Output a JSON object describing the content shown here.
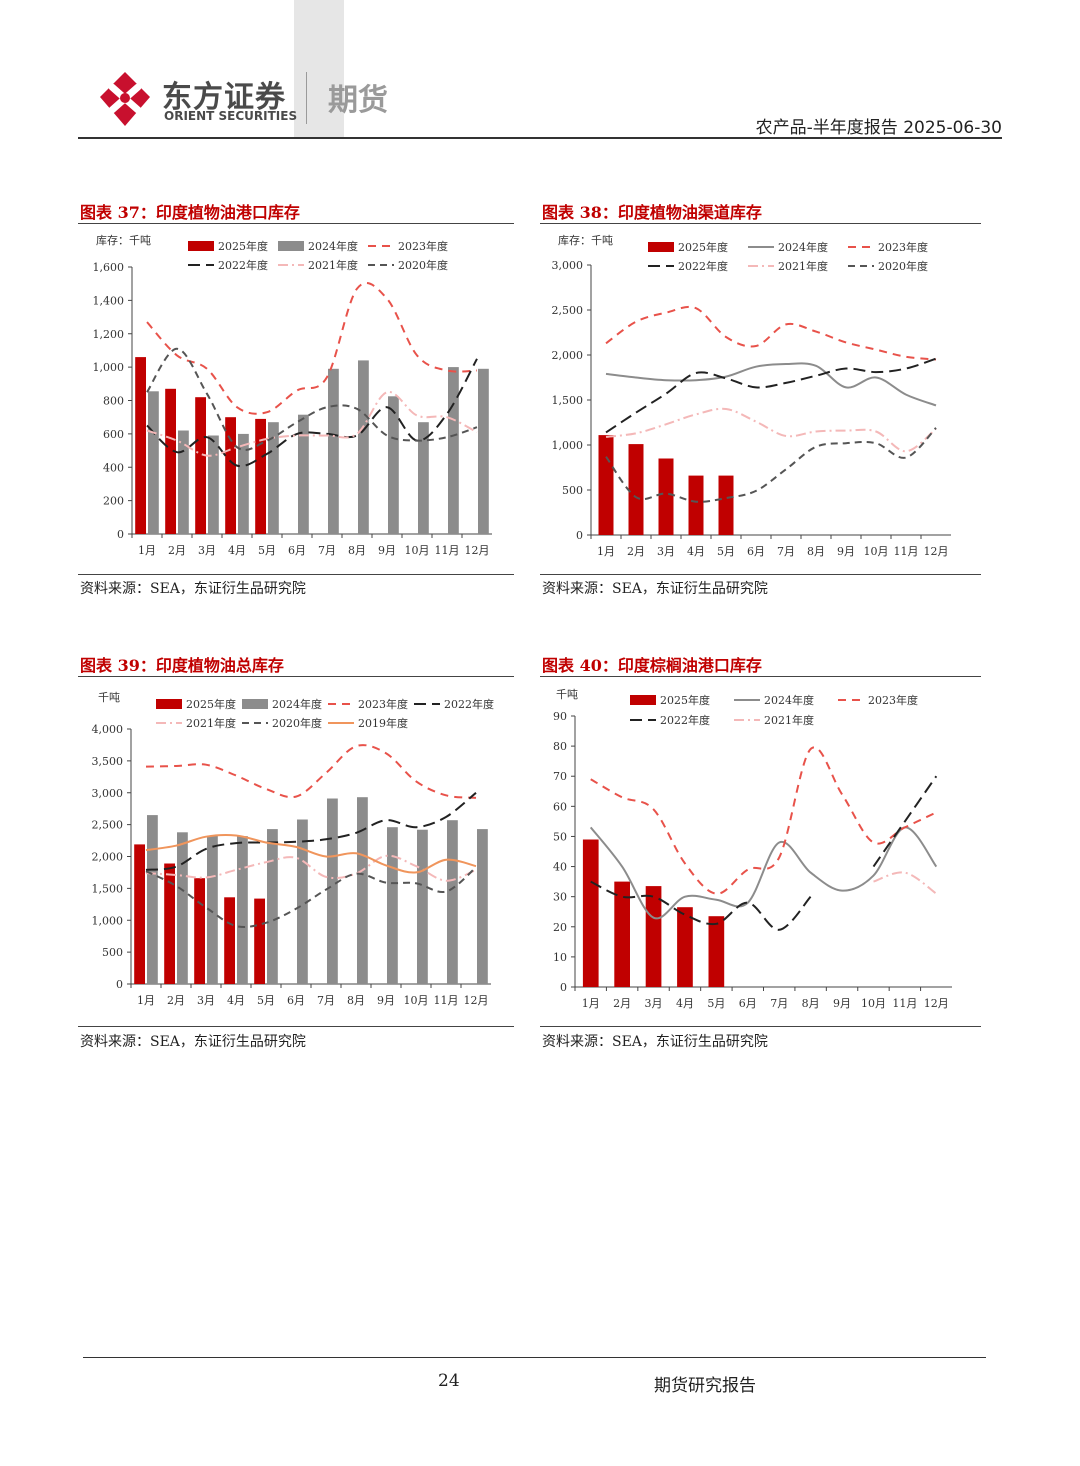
{
  "header": {
    "brand_cn": "东方证券",
    "brand_en": "ORIENT SECURITIES",
    "brand_futures": "期货",
    "report_title": "农产品-半年度报告 2025-06-30"
  },
  "footer": {
    "page_number": "24",
    "text": "期货研究报告"
  },
  "colors": {
    "brand_red": "#c8102e",
    "title_red": "#c00000",
    "bar_red": "#c00000",
    "bar_grey": "#8c8c8c",
    "line_2024": "#8c8c8c",
    "line_2023": "#e8524a",
    "line_2022": "#222222",
    "line_2021": "#f4b8b8",
    "line_2020": "#555555",
    "line_2019": "#f0955c"
  },
  "chart_data": [
    {
      "title": "图表 37：印度植物油港口库存",
      "source": "资料来源：SEA，东证衍生品研究院",
      "type": "bar+line",
      "unit_label": "库存：千吨",
      "categories": [
        "1月",
        "2月",
        "3月",
        "4月",
        "5月",
        "6月",
        "7月",
        "8月",
        "9月",
        "10月",
        "11月",
        "12月"
      ],
      "ylim": [
        0,
        1600
      ],
      "yticks": [
        "0",
        "200",
        "400",
        "600",
        "800",
        "1,000",
        "1,200",
        "1,400",
        "1,600"
      ],
      "legend_columns": 3,
      "bars": [
        {
          "name": "2025年度",
          "color": "#c00000",
          "values": [
            1060,
            870,
            820,
            700,
            690
          ]
        },
        {
          "name": "2024年度",
          "color": "#8c8c8c",
          "values": [
            855,
            620,
            590,
            600,
            670,
            715,
            990,
            1040,
            825,
            670,
            1000,
            990
          ]
        }
      ],
      "lines": [
        {
          "name": "2023年度",
          "color": "#e8524a",
          "dash": "8,6",
          "values": [
            1270,
            1070,
            990,
            760,
            730,
            860,
            940,
            1470,
            1410,
            1070,
            980,
            980
          ]
        },
        {
          "name": "2022年度",
          "color": "#222222",
          "dash": "12,6",
          "values": [
            650,
            490,
            580,
            410,
            480,
            600,
            600,
            590,
            760,
            560,
            720,
            1050
          ]
        },
        {
          "name": "2021年度",
          "color": "#f4b8b8",
          "dash": "10,4,2,4",
          "values": [
            620,
            560,
            470,
            520,
            570,
            590,
            590,
            600,
            850,
            710,
            700,
            610
          ]
        },
        {
          "name": "2020年度",
          "color": "#555555",
          "dash": "7,5",
          "values": [
            850,
            1110,
            840,
            520,
            560,
            670,
            760,
            750,
            590,
            560,
            580,
            640
          ]
        }
      ]
    },
    {
      "title": "图表 38：印度植物油渠道库存",
      "source": "资料来源：SEA，东证衍生品研究院",
      "type": "bar+line",
      "unit_label": "库存：千吨",
      "categories": [
        "1月",
        "2月",
        "3月",
        "4月",
        "5月",
        "6月",
        "7月",
        "8月",
        "9月",
        "10月",
        "11月",
        "12月"
      ],
      "ylim": [
        0,
        3000
      ],
      "yticks": [
        "0",
        "500",
        "1,000",
        "1,500",
        "2,000",
        "2,500",
        "3,000"
      ],
      "legend_columns": 3,
      "bars": [
        {
          "name": "2025年度",
          "color": "#c00000",
          "values": [
            1110,
            1010,
            850,
            660,
            660
          ]
        }
      ],
      "lines": [
        {
          "name": "2024年度",
          "color": "#8c8c8c",
          "dash": "",
          "values": [
            1790,
            1750,
            1720,
            1720,
            1760,
            1870,
            1900,
            1880,
            1640,
            1750,
            1560,
            1440
          ]
        },
        {
          "name": "2023年度",
          "color": "#e8524a",
          "dash": "8,6",
          "values": [
            2130,
            2370,
            2470,
            2520,
            2200,
            2100,
            2340,
            2260,
            2140,
            2060,
            1980,
            1950
          ]
        },
        {
          "name": "2022年度",
          "color": "#222222",
          "dash": "12,6",
          "values": [
            1140,
            1360,
            1570,
            1800,
            1740,
            1640,
            1690,
            1770,
            1850,
            1810,
            1850,
            1960
          ]
        },
        {
          "name": "2021年度",
          "color": "#f4b8b8",
          "dash": "10,4,2,4",
          "values": [
            1090,
            1130,
            1230,
            1340,
            1400,
            1260,
            1100,
            1150,
            1160,
            1150,
            930,
            1180
          ]
        },
        {
          "name": "2020年度",
          "color": "#555555",
          "dash": "7,5",
          "values": [
            870,
            420,
            460,
            370,
            410,
            490,
            730,
            980,
            1020,
            1020,
            860,
            1190
          ]
        }
      ]
    },
    {
      "title": "图表 39：印度植物油总库存",
      "source": "资料来源：SEA，东证衍生品研究院",
      "type": "bar+line",
      "unit_label": "千吨",
      "categories": [
        "1月",
        "2月",
        "3月",
        "4月",
        "5月",
        "6月",
        "7月",
        "8月",
        "9月",
        "10月",
        "11月",
        "12月"
      ],
      "ylim": [
        0,
        4000
      ],
      "yticks": [
        "0",
        "500",
        "1,000",
        "1,500",
        "2,000",
        "2,500",
        "3,000",
        "3,500",
        "4,000"
      ],
      "legend_columns": 4,
      "bars": [
        {
          "name": "2025年度",
          "color": "#c00000",
          "values": [
            2190,
            1890,
            1660,
            1360,
            1340
          ]
        },
        {
          "name": "2024年度",
          "color": "#8c8c8c",
          "values": [
            2650,
            2380,
            2330,
            2320,
            2430,
            2580,
            2910,
            2930,
            2460,
            2420,
            2570,
            2430
          ]
        }
      ],
      "lines": [
        {
          "name": "2023年度",
          "color": "#e8524a",
          "dash": "8,6",
          "values": [
            3410,
            3420,
            3440,
            3270,
            3060,
            2940,
            3310,
            3730,
            3620,
            3180,
            2960,
            2920
          ]
        },
        {
          "name": "2022年度",
          "color": "#222222",
          "dash": "12,6",
          "values": [
            1790,
            1840,
            2120,
            2210,
            2220,
            2230,
            2270,
            2370,
            2570,
            2460,
            2620,
            3000
          ]
        },
        {
          "name": "2021年度",
          "color": "#f4b8b8",
          "dash": "10,4,2,4",
          "values": [
            1740,
            1710,
            1670,
            1790,
            1910,
            1980,
            1680,
            1730,
            2010,
            1850,
            1620,
            1790
          ]
        },
        {
          "name": "2020年度",
          "color": "#555555",
          "dash": "7,5",
          "values": [
            1770,
            1540,
            1200,
            910,
            960,
            1180,
            1480,
            1730,
            1590,
            1580,
            1450,
            1830
          ]
        },
        {
          "name": "2019年度",
          "color": "#f0955c",
          "dash": "",
          "values": [
            2100,
            2170,
            2310,
            2330,
            2220,
            2150,
            2000,
            2050,
            1860,
            1750,
            1950,
            1850
          ]
        }
      ]
    },
    {
      "title": "图表 40：印度棕榈油港口库存",
      "source": "资料来源：SEA，东证衍生品研究院",
      "type": "bar+line",
      "unit_label": "千吨",
      "categories": [
        "1月",
        "2月",
        "3月",
        "4月",
        "5月",
        "6月",
        "7月",
        "8月",
        "9月",
        "10月",
        "11月",
        "12月"
      ],
      "ylim": [
        0,
        90
      ],
      "yticks": [
        "0",
        "10",
        "20",
        "30",
        "40",
        "50",
        "60",
        "70",
        "80",
        "90"
      ],
      "legend_columns": 3,
      "bars": [
        {
          "name": "2025年度",
          "color": "#c00000",
          "values": [
            49,
            35,
            33.5,
            26.5,
            23.5
          ]
        }
      ],
      "lines": [
        {
          "name": "2024年度",
          "color": "#8c8c8c",
          "dash": "",
          "values": [
            53,
            40,
            23,
            30,
            29,
            28,
            48,
            38,
            32,
            37,
            53,
            40
          ]
        },
        {
          "name": "2023年度",
          "color": "#e8524a",
          "dash": "8,6",
          "values": [
            69,
            63,
            59,
            41,
            31,
            39,
            43,
            79,
            64,
            48,
            53,
            58
          ]
        },
        {
          "name": "2022年度",
          "color": "#222222",
          "dash": "12,6",
          "values": [
            35,
            30,
            30,
            24,
            21,
            28,
            19,
            30,
            null,
            40,
            55,
            70
          ]
        },
        {
          "name": "2021年度",
          "color": "#f4b8b8",
          "dash": "10,4,2,4",
          "values": [
            null,
            null,
            null,
            null,
            null,
            null,
            null,
            null,
            null,
            35,
            38,
            31
          ]
        }
      ]
    }
  ]
}
